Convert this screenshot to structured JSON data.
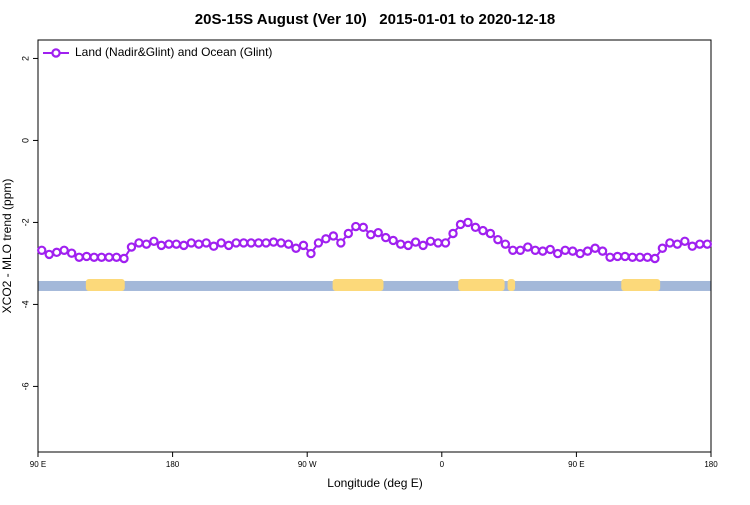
{
  "chart_data": {
    "type": "line",
    "title": "20S-15S August (Ver 10)   2015-01-01 to 2020-12-18",
    "xlabel": "Longitude (deg E)",
    "ylabel": "XCO2 - MLO trend (ppm)",
    "xlim": [
      -270,
      180
    ],
    "xticks": [
      {
        "value": -270,
        "label": "90 E"
      },
      {
        "value": -180,
        "label": "180"
      },
      {
        "value": -90,
        "label": "90 W"
      },
      0,
      {
        "value": 90,
        "label": "90 E"
      },
      180
    ],
    "ylim": [
      -7.6,
      2.45
    ],
    "yticks": [
      2,
      0,
      -2,
      -4,
      -6
    ],
    "legend": "top-left",
    "x": [
      -267.5,
      -262.5,
      -257.5,
      -252.5,
      -247.5,
      -242.5,
      -237.5,
      -232.5,
      -227.5,
      -222.5,
      -217.5,
      -212.5,
      -207.5,
      -202.5,
      -197.5,
      -192.5,
      -187.5,
      -182.5,
      -177.5,
      -172.5,
      -167.5,
      -162.5,
      -157.5,
      -152.5,
      -147.5,
      -142.5,
      -137.5,
      -132.5,
      -127.5,
      -122.5,
      -117.5,
      -112.5,
      -107.5,
      -102.5,
      -97.5,
      -92.5,
      -87.5,
      -82.5,
      -77.5,
      -72.5,
      -67.5,
      -62.5,
      -57.5,
      -52.5,
      -47.5,
      -42.5,
      -37.5,
      -32.5,
      -27.5,
      -22.5,
      -17.5,
      -12.5,
      -7.5,
      -2.5,
      2.5,
      7.5,
      12.5,
      17.5,
      22.5,
      27.5,
      32.5,
      37.5,
      42.5,
      47.5,
      52.5,
      57.5,
      62.5,
      67.5,
      72.5,
      77.5,
      82.5,
      87.5,
      92.5,
      97.5,
      102.5,
      107.5,
      112.5,
      117.5,
      122.5,
      127.5,
      132.5,
      137.5,
      142.5,
      147.5,
      152.5,
      157.5,
      162.5,
      167.5,
      172.5,
      177.5
    ],
    "series": [
      {
        "name": "Land (Nadir&Glint) and Ocean (Glint)",
        "color": "#a020f0",
        "values": [
          -2.68,
          -2.78,
          -2.73,
          -2.68,
          -2.75,
          -2.85,
          -2.83,
          -2.85,
          -2.85,
          -2.85,
          -2.85,
          -2.88,
          -2.6,
          -2.5,
          -2.53,
          -2.46,
          -2.56,
          -2.53,
          -2.53,
          -2.56,
          -2.5,
          -2.53,
          -2.5,
          -2.58,
          -2.5,
          -2.56,
          -2.5,
          -2.5,
          -2.5,
          -2.5,
          -2.5,
          -2.48,
          -2.5,
          -2.53,
          -2.63,
          -2.56,
          -2.76,
          -2.5,
          -2.4,
          -2.33,
          -2.5,
          -2.27,
          -2.1,
          -2.12,
          -2.3,
          -2.25,
          -2.37,
          -2.44,
          -2.53,
          -2.56,
          -2.48,
          -2.56,
          -2.46,
          -2.5,
          -2.5,
          -2.27,
          -2.05,
          -2.0,
          -2.12,
          -2.2,
          -2.27,
          -2.42,
          -2.53,
          -2.68,
          -2.68,
          -2.6,
          -2.68,
          -2.7,
          -2.66,
          -2.76,
          -2.68,
          -2.7,
          -2.76,
          -2.7,
          -2.63,
          -2.7,
          -2.85,
          -2.83,
          -2.83,
          -2.85,
          -2.85,
          -2.85,
          -2.88,
          -2.63,
          -2.5,
          -2.53,
          -2.46,
          -2.58,
          -2.53,
          -2.53
        ]
      }
    ],
    "surface_band": {
      "y": -3.55,
      "ocean_color": "#a3b8d9",
      "land_color": "#fcd97a",
      "land": [
        [
          -238,
          -212
        ],
        [
          -73,
          -39
        ],
        [
          11,
          42
        ],
        [
          44,
          49
        ],
        [
          120,
          146
        ]
      ]
    }
  }
}
